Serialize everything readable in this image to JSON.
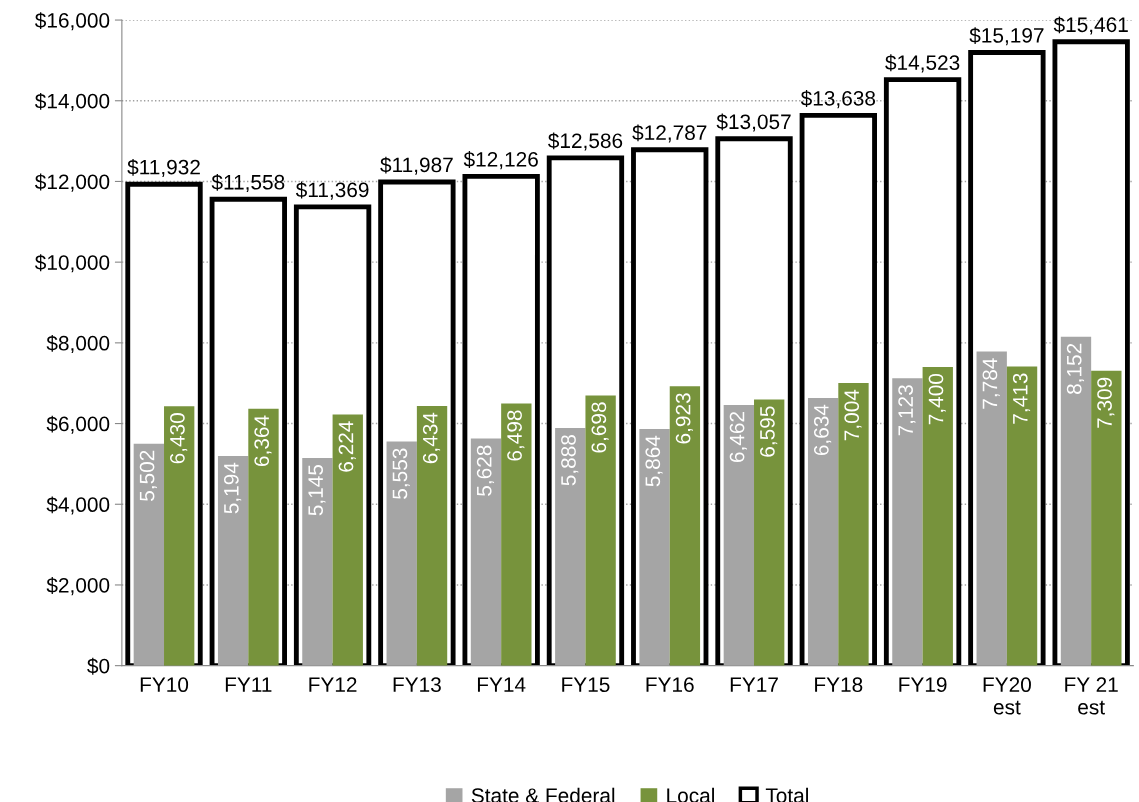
{
  "chart_data": {
    "type": "bar",
    "categories": [
      "FY10",
      "FY11",
      "FY12",
      "FY13",
      "FY14",
      "FY15",
      "FY16",
      "FY17",
      "FY18",
      "FY19",
      "FY20\nest",
      "FY 21\nest"
    ],
    "series": [
      {
        "name": "State & Federal",
        "color": "#a5a5a5",
        "values": [
          5502,
          5194,
          5145,
          5553,
          5628,
          5888,
          5864,
          6462,
          6634,
          7123,
          7784,
          8152
        ],
        "value_labels": [
          "5,502",
          "5,194",
          "5,145",
          "5,553",
          "5,628",
          "5,888",
          "5,864",
          "6,462",
          "6,634",
          "7,123",
          "7,784",
          "8,152"
        ]
      },
      {
        "name": "Local",
        "color": "#77933c",
        "values": [
          6430,
          6364,
          6224,
          6434,
          6498,
          6698,
          6923,
          6595,
          7004,
          7400,
          7413,
          7309
        ],
        "value_labels": [
          "6,430",
          "6,364",
          "6,224",
          "6,434",
          "6,498",
          "6,698",
          "6,923",
          "6,595",
          "7,004",
          "7,400",
          "7,413",
          "7,309"
        ]
      },
      {
        "name": "Total",
        "color": "#000000",
        "values": [
          11932,
          11558,
          11369,
          11987,
          12126,
          12586,
          12787,
          13057,
          13638,
          14523,
          15197,
          15461
        ],
        "value_labels": [
          "$11,932",
          "$11,558",
          "$11,369",
          "$11,987",
          "$12,126",
          "$12,586",
          "$12,787",
          "$13,057",
          "$13,638",
          "$14,523",
          "$15,197",
          "$15,461"
        ]
      }
    ],
    "ylim": [
      0,
      16000
    ],
    "yticks": [
      {
        "value": 0,
        "label": "$0"
      },
      {
        "value": 2000,
        "label": "$2,000"
      },
      {
        "value": 4000,
        "label": "$4,000"
      },
      {
        "value": 6000,
        "label": "$6,000"
      },
      {
        "value": 8000,
        "label": "$8,000"
      },
      {
        "value": 10000,
        "label": "$10,000"
      },
      {
        "value": 12000,
        "label": "$12,000"
      },
      {
        "value": 14000,
        "label": "$14,000"
      },
      {
        "value": 16000,
        "label": "$16,000"
      }
    ],
    "grid": "y",
    "legend": "bottom"
  }
}
